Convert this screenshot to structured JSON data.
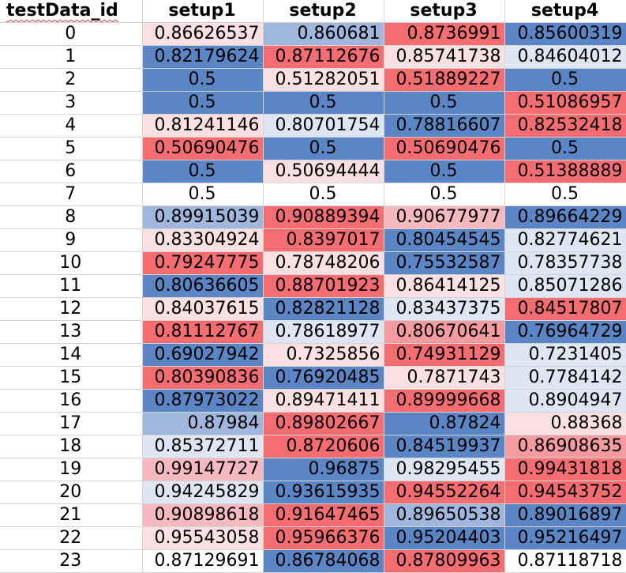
{
  "headers": [
    "testData_id",
    "setup1",
    "setup2",
    "setup3",
    "setup4"
  ],
  "colors": {
    "deep_blue": "#5b86c5",
    "mid_blue": "#9fb7dc",
    "light_blue": "#dfe6f3",
    "white": "#ffffff",
    "light_pink": "#fbe0e3",
    "mid_pink": "#f6b9bd",
    "pink": "#f59a9e",
    "red": "#f56d71"
  },
  "rows": [
    {
      "id": "0",
      "cells": [
        {
          "v": "0.86626537",
          "c": "light_pink"
        },
        {
          "v": "0.860681",
          "c": "mid_blue"
        },
        {
          "v": "0.8736991",
          "c": "red"
        },
        {
          "v": "0.85600319",
          "c": "deep_blue"
        }
      ]
    },
    {
      "id": "1",
      "cells": [
        {
          "v": "0.82179624",
          "c": "deep_blue"
        },
        {
          "v": "0.87112676",
          "c": "red"
        },
        {
          "v": "0.85741738",
          "c": "light_pink"
        },
        {
          "v": "0.84604012",
          "c": "light_blue"
        }
      ]
    },
    {
      "id": "2",
      "cells": [
        {
          "v": "0.5",
          "c": "deep_blue"
        },
        {
          "v": "0.51282051",
          "c": "light_pink"
        },
        {
          "v": "0.51889227",
          "c": "red"
        },
        {
          "v": "0.5",
          "c": "deep_blue"
        }
      ]
    },
    {
      "id": "3",
      "cells": [
        {
          "v": "0.5",
          "c": "deep_blue"
        },
        {
          "v": "0.5",
          "c": "deep_blue"
        },
        {
          "v": "0.5",
          "c": "deep_blue"
        },
        {
          "v": "0.51086957",
          "c": "red"
        }
      ]
    },
    {
      "id": "4",
      "cells": [
        {
          "v": "0.81241146",
          "c": "light_pink"
        },
        {
          "v": "0.80701754",
          "c": "light_blue"
        },
        {
          "v": "0.78816607",
          "c": "deep_blue"
        },
        {
          "v": "0.82532418",
          "c": "red"
        }
      ]
    },
    {
      "id": "5",
      "cells": [
        {
          "v": "0.50690476",
          "c": "red"
        },
        {
          "v": "0.5",
          "c": "deep_blue"
        },
        {
          "v": "0.50690476",
          "c": "red"
        },
        {
          "v": "0.5",
          "c": "deep_blue"
        }
      ]
    },
    {
      "id": "6",
      "cells": [
        {
          "v": "0.5",
          "c": "deep_blue"
        },
        {
          "v": "0.50694444",
          "c": "light_pink"
        },
        {
          "v": "0.5",
          "c": "deep_blue"
        },
        {
          "v": "0.51388889",
          "c": "red"
        }
      ]
    },
    {
      "id": "7",
      "cells": [
        {
          "v": "0.5",
          "c": "white"
        },
        {
          "v": "0.5",
          "c": "white"
        },
        {
          "v": "0.5",
          "c": "white"
        },
        {
          "v": "0.5",
          "c": "white"
        }
      ]
    },
    {
      "id": "8",
      "cells": [
        {
          "v": "0.89915039",
          "c": "mid_blue"
        },
        {
          "v": "0.90889394",
          "c": "red"
        },
        {
          "v": "0.90677977",
          "c": "mid_pink"
        },
        {
          "v": "0.89664229",
          "c": "deep_blue"
        }
      ]
    },
    {
      "id": "9",
      "cells": [
        {
          "v": "0.83304924",
          "c": "light_pink"
        },
        {
          "v": "0.8397017",
          "c": "red"
        },
        {
          "v": "0.80454545",
          "c": "deep_blue"
        },
        {
          "v": "0.82774621",
          "c": "light_blue"
        }
      ]
    },
    {
      "id": "10",
      "cells": [
        {
          "v": "0.79247775",
          "c": "red"
        },
        {
          "v": "0.78748206",
          "c": "light_pink"
        },
        {
          "v": "0.75532587",
          "c": "deep_blue"
        },
        {
          "v": "0.78357738",
          "c": "light_blue"
        }
      ]
    },
    {
      "id": "11",
      "cells": [
        {
          "v": "0.80636605",
          "c": "deep_blue"
        },
        {
          "v": "0.88701923",
          "c": "red"
        },
        {
          "v": "0.86414125",
          "c": "light_pink"
        },
        {
          "v": "0.85071286",
          "c": "light_blue"
        }
      ]
    },
    {
      "id": "12",
      "cells": [
        {
          "v": "0.84037615",
          "c": "light_pink"
        },
        {
          "v": "0.82821128",
          "c": "deep_blue"
        },
        {
          "v": "0.83437375",
          "c": "light_blue"
        },
        {
          "v": "0.84517807",
          "c": "red"
        }
      ]
    },
    {
      "id": "13",
      "cells": [
        {
          "v": "0.81112767",
          "c": "red"
        },
        {
          "v": "0.78618977",
          "c": "light_blue"
        },
        {
          "v": "0.80670641",
          "c": "pink"
        },
        {
          "v": "0.76964729",
          "c": "deep_blue"
        }
      ]
    },
    {
      "id": "14",
      "cells": [
        {
          "v": "0.69027942",
          "c": "deep_blue"
        },
        {
          "v": "0.7325856",
          "c": "light_pink"
        },
        {
          "v": "0.74931129",
          "c": "red"
        },
        {
          "v": "0.7231405",
          "c": "light_blue"
        }
      ]
    },
    {
      "id": "15",
      "cells": [
        {
          "v": "0.80390836",
          "c": "red"
        },
        {
          "v": "0.76920485",
          "c": "deep_blue"
        },
        {
          "v": "0.7871743",
          "c": "light_pink"
        },
        {
          "v": "0.7784142",
          "c": "light_blue"
        }
      ]
    },
    {
      "id": "16",
      "cells": [
        {
          "v": "0.87973022",
          "c": "deep_blue"
        },
        {
          "v": "0.89471411",
          "c": "light_pink"
        },
        {
          "v": "0.89999668",
          "c": "red"
        },
        {
          "v": "0.8904947",
          "c": "light_blue"
        }
      ]
    },
    {
      "id": "17",
      "cells": [
        {
          "v": "0.87984",
          "c": "mid_blue"
        },
        {
          "v": "0.89802667",
          "c": "red"
        },
        {
          "v": "0.87824",
          "c": "deep_blue"
        },
        {
          "v": "0.88368",
          "c": "light_pink"
        }
      ]
    },
    {
      "id": "18",
      "cells": [
        {
          "v": "0.85372711",
          "c": "light_blue"
        },
        {
          "v": "0.8720606",
          "c": "red"
        },
        {
          "v": "0.84519937",
          "c": "deep_blue"
        },
        {
          "v": "0.86908635",
          "c": "pink"
        }
      ]
    },
    {
      "id": "19",
      "cells": [
        {
          "v": "0.99147727",
          "c": "mid_pink"
        },
        {
          "v": "0.96875",
          "c": "deep_blue"
        },
        {
          "v": "0.98295455",
          "c": "light_blue"
        },
        {
          "v": "0.99431818",
          "c": "red"
        }
      ]
    },
    {
      "id": "20",
      "cells": [
        {
          "v": "0.94245829",
          "c": "light_blue"
        },
        {
          "v": "0.93615935",
          "c": "deep_blue"
        },
        {
          "v": "0.94552264",
          "c": "red"
        },
        {
          "v": "0.94543752",
          "c": "red"
        }
      ]
    },
    {
      "id": "21",
      "cells": [
        {
          "v": "0.90898618",
          "c": "mid_pink"
        },
        {
          "v": "0.91647465",
          "c": "red"
        },
        {
          "v": "0.89650538",
          "c": "mid_blue"
        },
        {
          "v": "0.89016897",
          "c": "deep_blue"
        }
      ]
    },
    {
      "id": "22",
      "cells": [
        {
          "v": "0.95543058",
          "c": "light_pink"
        },
        {
          "v": "0.95966376",
          "c": "red"
        },
        {
          "v": "0.95204403",
          "c": "deep_blue"
        },
        {
          "v": "0.95216497",
          "c": "deep_blue"
        }
      ]
    },
    {
      "id": "23",
      "cells": [
        {
          "v": "0.87129691",
          "c": "white"
        },
        {
          "v": "0.86784068",
          "c": "deep_blue"
        },
        {
          "v": "0.87809963",
          "c": "red"
        },
        {
          "v": "0.87118718",
          "c": "white"
        }
      ]
    }
  ]
}
